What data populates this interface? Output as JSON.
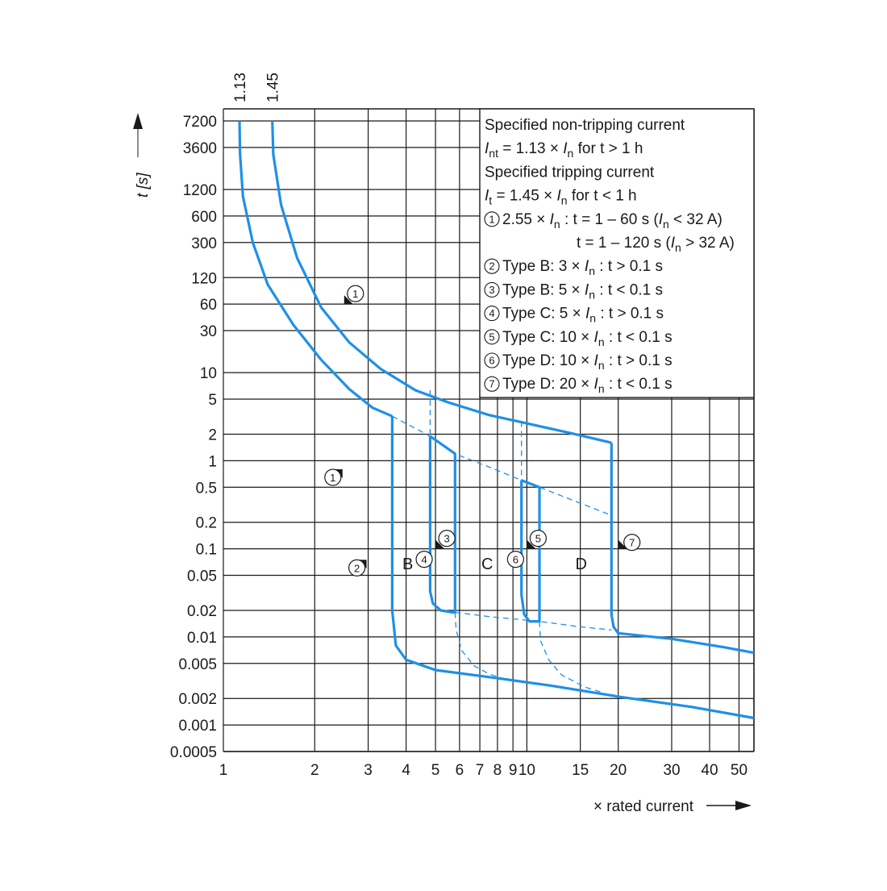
{
  "chart_data": {
    "type": "line",
    "x_scale": "log",
    "y_scale": "log",
    "xlim": [
      1,
      56
    ],
    "ylim": [
      0.0005,
      7200
    ],
    "grid": true,
    "x_ticks": [
      {
        "value": 1,
        "label": "1"
      },
      {
        "value": 2,
        "label": "2"
      },
      {
        "value": 3,
        "label": "3"
      },
      {
        "value": 4,
        "label": "4"
      },
      {
        "value": 5,
        "label": "5"
      },
      {
        "value": 6,
        "label": "6"
      },
      {
        "value": 7,
        "label": "7"
      },
      {
        "value": 8,
        "label": "8"
      },
      {
        "value": 9,
        "label": "9"
      },
      {
        "value": 10,
        "label": "10"
      },
      {
        "value": 15,
        "label": "15"
      },
      {
        "value": 20,
        "label": "20"
      },
      {
        "value": 30,
        "label": "30"
      },
      {
        "value": 40,
        "label": "40"
      },
      {
        "value": 50,
        "label": "50"
      }
    ],
    "y_ticks": [
      {
        "value": 7200,
        "label": "7200"
      },
      {
        "value": 3600,
        "label": "3600"
      },
      {
        "value": 1200,
        "label": "1200"
      },
      {
        "value": 600,
        "label": "600"
      },
      {
        "value": 300,
        "label": "300"
      },
      {
        "value": 120,
        "label": "120"
      },
      {
        "value": 60,
        "label": "60"
      },
      {
        "value": 30,
        "label": "30"
      },
      {
        "value": 10,
        "label": "10"
      },
      {
        "value": 5,
        "label": "5"
      },
      {
        "value": 2,
        "label": "2"
      },
      {
        "value": 1,
        "label": "1"
      },
      {
        "value": 0.5,
        "label": "0.5"
      },
      {
        "value": 0.2,
        "label": "0.2"
      },
      {
        "value": 0.1,
        "label": "0.1"
      },
      {
        "value": 0.05,
        "label": "0.05"
      },
      {
        "value": 0.02,
        "label": "0.02"
      },
      {
        "value": 0.01,
        "label": "0.01"
      },
      {
        "value": 0.005,
        "label": "0.005"
      },
      {
        "value": 0.002,
        "label": "0.002"
      },
      {
        "value": 0.001,
        "label": "0.001"
      },
      {
        "value": 0.0005,
        "label": "0.0005"
      }
    ],
    "xlabel": "× rated current",
    "ylabel": "t [s]",
    "top_labels": [
      {
        "value": 1.13,
        "label": "1.13"
      },
      {
        "value": 1.45,
        "label": "1.45"
      }
    ],
    "region_labels": [
      {
        "text": "B",
        "x": 4.05,
        "y": 0.068
      },
      {
        "text": "C",
        "x": 7.4,
        "y": 0.068
      },
      {
        "text": "D",
        "x": 15.1,
        "y": 0.068
      }
    ],
    "series": [
      {
        "style": "solid",
        "points": [
          [
            1.13,
            7200
          ],
          [
            1.135,
            3000
          ],
          [
            1.16,
            1000
          ],
          [
            1.25,
            300
          ],
          [
            1.4,
            100
          ],
          [
            1.7,
            35
          ],
          [
            2.1,
            14
          ],
          [
            2.6,
            6.5
          ],
          [
            3.1,
            4
          ],
          [
            3.6,
            3.2
          ]
        ]
      },
      {
        "style": "solid",
        "points": [
          [
            1.45,
            7200
          ],
          [
            1.46,
            3000
          ],
          [
            1.55,
            800
          ],
          [
            1.75,
            200
          ],
          [
            2.1,
            55
          ],
          [
            2.6,
            22
          ],
          [
            3.3,
            11
          ],
          [
            4.3,
            6.3
          ],
          [
            5.5,
            4.6
          ],
          [
            7.5,
            3.3
          ],
          [
            10,
            2.65
          ],
          [
            14,
            2.05
          ],
          [
            19,
            1.6
          ]
        ]
      },
      {
        "style": "solid",
        "points": [
          [
            3.6,
            3.2
          ],
          [
            3.6,
            0.02
          ],
          [
            3.7,
            0.008
          ],
          [
            4,
            0.0055
          ],
          [
            5,
            0.0042
          ],
          [
            8,
            0.0034
          ],
          [
            12,
            0.0028
          ],
          [
            20,
            0.0021
          ],
          [
            35,
            0.0016
          ],
          [
            56,
            0.0012
          ]
        ]
      },
      {
        "style": "solid",
        "points": [
          [
            19,
            1.6
          ],
          [
            19,
            0.018
          ],
          [
            19.3,
            0.013
          ],
          [
            20,
            0.011
          ],
          [
            30,
            0.0095
          ],
          [
            45,
            0.0076
          ],
          [
            56,
            0.0066
          ]
        ]
      },
      {
        "style": "solid",
        "points": [
          [
            4.8,
            1.9
          ],
          [
            4.8,
            0.033
          ],
          [
            4.9,
            0.024
          ],
          [
            5.2,
            0.02
          ],
          [
            5.7,
            0.019
          ],
          [
            5.8,
            0.019
          ],
          [
            5.8,
            1.2
          ],
          [
            4.8,
            1.9
          ]
        ]
      },
      {
        "style": "solid",
        "points": [
          [
            9.6,
            0.6
          ],
          [
            9.6,
            0.03
          ],
          [
            9.8,
            0.018
          ],
          [
            10.2,
            0.015
          ],
          [
            11,
            0.015
          ],
          [
            11,
            0.5
          ],
          [
            9.6,
            0.6
          ]
        ]
      },
      {
        "style": "dashed",
        "points": [
          [
            3.6,
            3.2
          ],
          [
            4.8,
            1.9
          ],
          [
            5.8,
            1.2
          ],
          [
            7.5,
            0.85
          ],
          [
            9.6,
            0.6
          ],
          [
            11,
            0.5
          ],
          [
            15,
            0.33
          ],
          [
            19,
            0.24
          ]
        ]
      },
      {
        "style": "dashed",
        "points": [
          [
            5.8,
            0.019
          ],
          [
            7.5,
            0.017
          ],
          [
            11,
            0.015
          ],
          [
            15,
            0.013
          ],
          [
            19,
            0.012
          ]
        ]
      },
      {
        "style": "dashed",
        "points": [
          [
            4.8,
            6.3
          ],
          [
            4.8,
            1.9
          ]
        ]
      },
      {
        "style": "dashed",
        "points": [
          [
            9.6,
            2.8
          ],
          [
            9.6,
            0.6
          ]
        ]
      },
      {
        "style": "dashed",
        "points": [
          [
            5.8,
            0.019
          ],
          [
            5.85,
            0.012
          ],
          [
            6.1,
            0.007
          ],
          [
            6.7,
            0.0047
          ],
          [
            7.5,
            0.0038
          ],
          [
            8.5,
            0.0033
          ]
        ]
      },
      {
        "style": "dashed",
        "points": [
          [
            11,
            0.015
          ],
          [
            11.1,
            0.009
          ],
          [
            11.8,
            0.0055
          ],
          [
            13,
            0.0037
          ],
          [
            15.5,
            0.0027
          ],
          [
            18,
            0.0023
          ]
        ]
      }
    ],
    "markers": [
      {
        "label": "1",
        "pointer_x": 2.5,
        "pointer_y": 60,
        "label_side": "upper-right"
      },
      {
        "label": "1",
        "pointer_x": 2.5,
        "pointer_y": 0.8,
        "label_side": "left"
      },
      {
        "label": "2",
        "pointer_x": 3.0,
        "pointer_y": 0.075,
        "label_side": "left"
      },
      {
        "label": "3",
        "pointer_x": 5.0,
        "pointer_y": 0.1,
        "label_side": "upper-right"
      },
      {
        "label": "4",
        "pointer_x": 5.0,
        "pointer_y": 0.1,
        "label_side": "lower-left"
      },
      {
        "label": "5",
        "pointer_x": 10.0,
        "pointer_y": 0.1,
        "label_side": "upper-right"
      },
      {
        "label": "6",
        "pointer_x": 10.0,
        "pointer_y": 0.1,
        "label_side": "lower-left"
      },
      {
        "label": "7",
        "pointer_x": 20.0,
        "pointer_y": 0.1,
        "label_side": "right"
      }
    ],
    "annotation": {
      "lines": [
        [
          {
            "t": "Specified non-tripping current"
          }
        ],
        [
          {
            "t": "I",
            "i": true
          },
          {
            "t": "nt",
            "sub": true
          },
          {
            "t": " = 1.13 × "
          },
          {
            "t": "I",
            "i": true
          },
          {
            "t": "n",
            "sub": true
          },
          {
            "t": " for t > 1 h"
          }
        ],
        [
          {
            "t": "Specified tripping current"
          }
        ],
        [
          {
            "t": "I",
            "i": true
          },
          {
            "t": "t",
            "sub": true
          },
          {
            "t": " = 1.45 × "
          },
          {
            "t": "I",
            "i": true
          },
          {
            "t": "n",
            "sub": true
          },
          {
            "t": " for t < 1 h"
          }
        ],
        [
          {
            "c": "1"
          },
          {
            "t": " 2.55 × "
          },
          {
            "t": "I",
            "i": true
          },
          {
            "t": "n",
            "sub": true
          },
          {
            "t": " : t = 1 – 60 s ("
          },
          {
            "t": "I",
            "i": true
          },
          {
            "t": "n",
            "sub": true
          },
          {
            "t": " < 32 A)"
          }
        ],
        [
          {
            "t": "t = 1 – 120 s (",
            "indent": true
          },
          {
            "t": "I",
            "i": true
          },
          {
            "t": "n",
            "sub": true
          },
          {
            "t": " > 32 A)"
          }
        ],
        [
          {
            "c": "2"
          },
          {
            "t": " Type B: 3 × "
          },
          {
            "t": "I",
            "i": true
          },
          {
            "t": "n",
            "sub": true
          },
          {
            "t": " : t > 0.1 s"
          }
        ],
        [
          {
            "c": "3"
          },
          {
            "t": " Type B: 5 × "
          },
          {
            "t": "I",
            "i": true
          },
          {
            "t": "n",
            "sub": true
          },
          {
            "t": " : t < 0.1 s"
          }
        ],
        [
          {
            "c": "4"
          },
          {
            "t": " Type C: 5 × "
          },
          {
            "t": "I",
            "i": true
          },
          {
            "t": "n",
            "sub": true
          },
          {
            "t": " : t > 0.1 s"
          }
        ],
        [
          {
            "c": "5"
          },
          {
            "t": " Type C: 10 × "
          },
          {
            "t": "I",
            "i": true
          },
          {
            "t": "n",
            "sub": true
          },
          {
            "t": " : t < 0.1 s"
          }
        ],
        [
          {
            "c": "6"
          },
          {
            "t": " Type D: 10 × "
          },
          {
            "t": "I",
            "i": true
          },
          {
            "t": "n",
            "sub": true
          },
          {
            "t": " : t > 0.1 s"
          }
        ],
        [
          {
            "c": "7"
          },
          {
            "t": " Type D: 20 × "
          },
          {
            "t": "I",
            "i": true
          },
          {
            "t": "n",
            "sub": true
          },
          {
            "t": " : t < 0.1 s"
          }
        ]
      ]
    },
    "colors": {
      "curve": "#1e90e6",
      "grid": "#1a1a1a",
      "text": "#1a1a1a",
      "background": "#ffffff"
    }
  }
}
